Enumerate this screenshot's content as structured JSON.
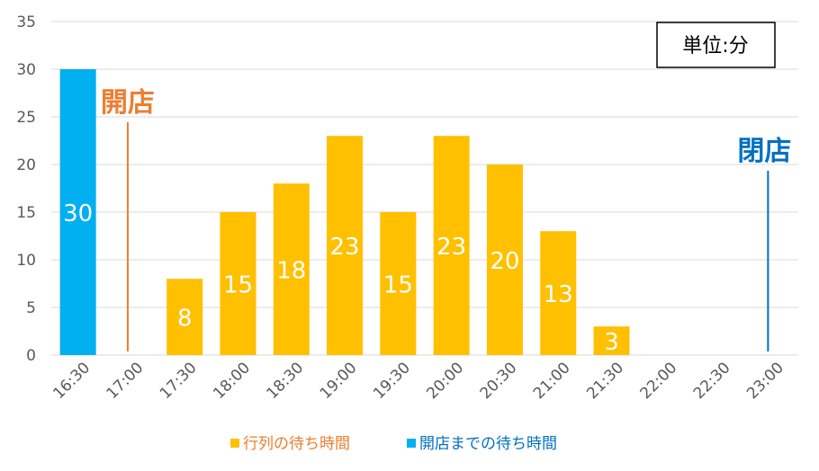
{
  "chart_data": {
    "type": "bar",
    "categories": [
      "16:30",
      "17:00",
      "17:30",
      "18:00",
      "18:30",
      "19:00",
      "19:30",
      "20:00",
      "20:30",
      "21:00",
      "21:30",
      "22:00",
      "22:30",
      "23:00"
    ],
    "series": [
      {
        "name": "行列の待ち時間",
        "color": "#FFC000",
        "legend_color": "#ED7D31",
        "values": [
          null,
          null,
          8,
          15,
          18,
          23,
          15,
          23,
          20,
          13,
          3,
          null,
          null,
          null
        ]
      },
      {
        "name": "開店までの待ち時間",
        "color": "#00B0F0",
        "legend_color": "#0070C0",
        "values": [
          30,
          null,
          null,
          null,
          null,
          null,
          null,
          null,
          null,
          null,
          null,
          null,
          null,
          null
        ]
      }
    ],
    "ylim": [
      0,
      35
    ],
    "yticks": [
      "0",
      "5",
      "10",
      "15",
      "20",
      "25",
      "30",
      "35"
    ],
    "grid": true,
    "legend_position": "bottom",
    "unit_label": "単位:分",
    "annotations": [
      {
        "text": "開店",
        "at": "17:00",
        "color": "#ED7D31"
      },
      {
        "text": "閉店",
        "at": "23:00",
        "color": "#0070C0"
      }
    ]
  }
}
